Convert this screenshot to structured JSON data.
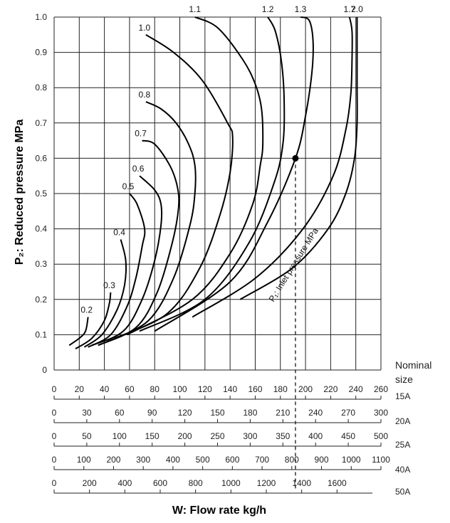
{
  "chart_data": {
    "type": "line",
    "ylabel": "P₂: Reduced pressure MPa",
    "xlabel": "W: Flow rate kg/h",
    "ylim": [
      0,
      1.0
    ],
    "xlim": [
      0,
      260
    ],
    "y_ticks": [
      "0",
      "0.1",
      "0.2",
      "0.3",
      "0.4",
      "0.5",
      "0.6",
      "0.7",
      "0.8",
      "0.9",
      "1.0"
    ],
    "grid": true,
    "inlet_pressure_label": "P₁: Inlet pressure MPa",
    "nominal_size_label": "Nominal size",
    "scales": [
      {
        "size": "15A",
        "max": 260,
        "ticks": [
          0,
          20,
          40,
          60,
          80,
          100,
          120,
          140,
          160,
          180,
          200,
          220,
          240,
          260
        ]
      },
      {
        "size": "20A",
        "max": 300,
        "ticks": [
          0,
          30,
          60,
          90,
          120,
          150,
          180,
          210,
          240,
          270,
          300
        ]
      },
      {
        "size": "25A",
        "max": 500,
        "ticks": [
          0,
          50,
          100,
          150,
          200,
          250,
          300,
          350,
          400,
          450,
          500
        ]
      },
      {
        "size": "40A",
        "max": 1100,
        "ticks": [
          0,
          100,
          200,
          300,
          400,
          500,
          600,
          700,
          800,
          900,
          1000,
          1100
        ]
      },
      {
        "size": "50A",
        "max": 1800,
        "ticks": [
          0,
          200,
          400,
          600,
          800,
          1000,
          1200,
          1400,
          1600
        ]
      }
    ],
    "series": [
      {
        "name": "0.2",
        "points": [
          [
            12,
            0.07
          ],
          [
            20,
            0.09
          ],
          [
            25,
            0.11
          ],
          [
            27,
            0.15
          ]
        ]
      },
      {
        "name": "0.3",
        "points": [
          [
            17,
            0.06
          ],
          [
            30,
            0.09
          ],
          [
            40,
            0.14
          ],
          [
            44,
            0.19
          ],
          [
            45,
            0.22
          ]
        ]
      },
      {
        "name": "0.4",
        "points": [
          [
            24,
            0.065
          ],
          [
            38,
            0.1
          ],
          [
            50,
            0.17
          ],
          [
            56,
            0.24
          ],
          [
            57,
            0.31
          ],
          [
            53,
            0.37
          ]
        ]
      },
      {
        "name": "0.5",
        "points": [
          [
            27,
            0.065
          ],
          [
            45,
            0.1
          ],
          [
            58,
            0.18
          ],
          [
            65,
            0.26
          ],
          [
            70,
            0.35
          ],
          [
            72,
            0.4
          ],
          [
            66,
            0.47
          ],
          [
            60,
            0.5
          ]
        ]
      },
      {
        "name": "0.6",
        "points": [
          [
            30,
            0.07
          ],
          [
            55,
            0.11
          ],
          [
            70,
            0.2
          ],
          [
            80,
            0.31
          ],
          [
            85,
            0.41
          ],
          [
            85,
            0.47
          ],
          [
            80,
            0.51
          ],
          [
            68,
            0.55
          ]
        ]
      },
      {
        "name": "0.7",
        "points": [
          [
            35,
            0.07
          ],
          [
            65,
            0.12
          ],
          [
            82,
            0.22
          ],
          [
            94,
            0.36
          ],
          [
            99,
            0.46
          ],
          [
            98,
            0.52
          ],
          [
            92,
            0.58
          ],
          [
            80,
            0.64
          ],
          [
            70,
            0.65
          ]
        ]
      },
      {
        "name": "0.8",
        "points": [
          [
            42,
            0.08
          ],
          [
            75,
            0.14
          ],
          [
            95,
            0.26
          ],
          [
            108,
            0.41
          ],
          [
            112,
            0.5
          ],
          [
            112,
            0.58
          ],
          [
            107,
            0.64
          ],
          [
            97,
            0.7
          ],
          [
            85,
            0.74
          ],
          [
            73,
            0.76
          ]
        ]
      },
      {
        "name": "1.0",
        "points": [
          [
            48,
            0.09
          ],
          [
            90,
            0.16
          ],
          [
            116,
            0.29
          ],
          [
            132,
            0.44
          ],
          [
            140,
            0.56
          ],
          [
            142,
            0.66
          ],
          [
            138,
            0.7
          ],
          [
            118,
            0.82
          ],
          [
            95,
            0.9
          ],
          [
            73,
            0.95
          ]
        ]
      },
      {
        "name": "1.1",
        "points": [
          [
            58,
            0.1
          ],
          [
            110,
            0.2
          ],
          [
            140,
            0.33
          ],
          [
            158,
            0.47
          ],
          [
            164,
            0.58
          ],
          [
            166,
            0.64
          ],
          [
            165,
            0.74
          ],
          [
            160,
            0.81
          ],
          [
            150,
            0.88
          ],
          [
            130,
            0.97
          ],
          [
            112,
            1.0
          ]
        ]
      },
      {
        "name": "1.2",
        "points": [
          [
            68,
            0.11
          ],
          [
            120,
            0.2
          ],
          [
            155,
            0.36
          ],
          [
            175,
            0.53
          ],
          [
            182,
            0.64
          ],
          [
            183,
            0.76
          ],
          [
            181,
            0.87
          ],
          [
            176,
            0.96
          ],
          [
            170,
            1.0
          ]
        ]
      },
      {
        "name": "1.3",
        "points": [
          [
            80,
            0.11
          ],
          [
            140,
            0.25
          ],
          [
            170,
            0.42
          ],
          [
            192,
            0.6
          ],
          [
            200,
            0.72
          ],
          [
            205,
            0.84
          ],
          [
            206,
            0.93
          ],
          [
            203,
            0.99
          ],
          [
            196,
            1.0
          ]
        ]
      },
      {
        "name": "1.7",
        "points": [
          [
            110,
            0.15
          ],
          [
            160,
            0.26
          ],
          [
            198,
            0.4
          ],
          [
            222,
            0.55
          ],
          [
            232,
            0.68
          ],
          [
            236,
            0.78
          ],
          [
            237,
            0.88
          ],
          [
            237,
            0.96
          ],
          [
            235,
            1.0
          ]
        ]
      },
      {
        "name": "2.0",
        "points": [
          [
            148,
            0.2
          ],
          [
            190,
            0.29
          ],
          [
            218,
            0.4
          ],
          [
            232,
            0.5
          ],
          [
            239,
            0.6
          ],
          [
            241,
            0.7
          ],
          [
            241,
            0.8
          ],
          [
            241,
            0.9
          ],
          [
            241,
            1.0
          ]
        ]
      }
    ],
    "annotation": {
      "label": "P₁: Inlet pressure MPa",
      "point": [
        192,
        0.6
      ]
    }
  }
}
